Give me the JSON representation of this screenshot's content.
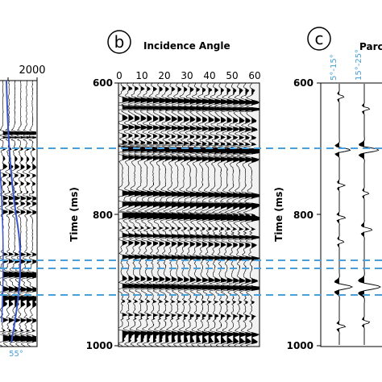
{
  "panels": {
    "a": {
      "top_tick": "2000",
      "bottom_label": "55°"
    },
    "b": {
      "letter": "b",
      "title": "Incidence Angle",
      "x_ticks": [
        "0",
        "10",
        "20",
        "30",
        "40",
        "50",
        "60"
      ],
      "y_ticks": [
        "600",
        "800",
        "1000"
      ],
      "y_label": "Time (ms)"
    },
    "c": {
      "letter": "c",
      "title": "Parc",
      "angle_labels": [
        "5°-15°",
        "15°-25°"
      ],
      "y_ticks": [
        "600",
        "800",
        "1000"
      ],
      "y_label": "Time (ms)"
    }
  },
  "colors": {
    "axis": "#000000",
    "dashed_line": "#4a9fd8",
    "velocity_curve": "#3a56c9",
    "angle_label": "#4a9fd8"
  }
}
